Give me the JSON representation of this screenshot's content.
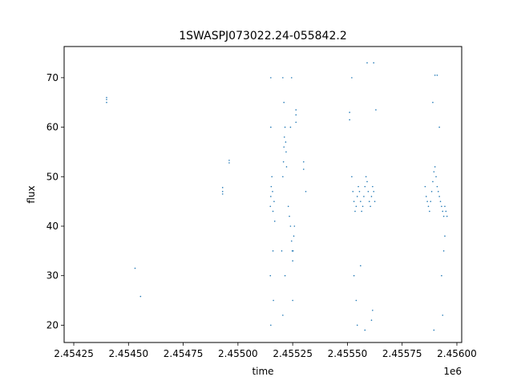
{
  "chart_data": {
    "type": "scatter",
    "title": "1SWASPJ073022.24-055842.2",
    "xlabel": "time",
    "ylabel": "flux",
    "x_offset_label": "1e6",
    "xlim": [
      2454206,
      2456022
    ],
    "ylim": [
      16.5,
      76.3
    ],
    "x_ticks": [
      2454250,
      2454500,
      2454750,
      2455000,
      2455250,
      2455500,
      2455750,
      2456000
    ],
    "x_tick_labels": [
      "2.45425",
      "2.45450",
      "2.45475",
      "2.45500",
      "2.45525",
      "2.45550",
      "2.45575",
      "2.45600"
    ],
    "y_ticks": [
      20,
      30,
      40,
      50,
      60,
      70
    ],
    "y_tick_labels": [
      "20",
      "30",
      "40",
      "50",
      "60",
      "70"
    ],
    "grid": false,
    "marker_color": "#1f77b4",
    "series": [
      {
        "values": [
          [
            2454190,
            53.4
          ],
          [
            2454400,
            65.0
          ],
          [
            2454400,
            65.6
          ],
          [
            2454400,
            66.0
          ],
          [
            2454530,
            31.5
          ],
          [
            2454555,
            25.8
          ],
          [
            2454930,
            47.0
          ],
          [
            2454930,
            47.8
          ],
          [
            2454930,
            46.5
          ],
          [
            2454960,
            52.8
          ],
          [
            2454960,
            53.3
          ],
          [
            2455148,
            44.0
          ],
          [
            2455150,
            46.0
          ],
          [
            2455152,
            48.0
          ],
          [
            2455155,
            50.0
          ],
          [
            2455158,
            47.0
          ],
          [
            2455160,
            43.0
          ],
          [
            2455165,
            45.0
          ],
          [
            2455168,
            41.0
          ],
          [
            2455150,
            70.0
          ],
          [
            2455150,
            60.0
          ],
          [
            2455148,
            30.0
          ],
          [
            2455150,
            20.0
          ],
          [
            2455160,
            35.0
          ],
          [
            2455162,
            25.0
          ],
          [
            2455205,
            50.0
          ],
          [
            2455208,
            53.0
          ],
          [
            2455210,
            56.0
          ],
          [
            2455212,
            58.0
          ],
          [
            2455215,
            60.0
          ],
          [
            2455218,
            57.0
          ],
          [
            2455220,
            55.0
          ],
          [
            2455222,
            52.0
          ],
          [
            2455205,
            70.0
          ],
          [
            2455210,
            65.0
          ],
          [
            2455200,
            35.0
          ],
          [
            2455205,
            22.0
          ],
          [
            2455215,
            30.0
          ],
          [
            2455230,
            44.0
          ],
          [
            2455235,
            42.0
          ],
          [
            2455240,
            40.0
          ],
          [
            2455245,
            37.0
          ],
          [
            2455248,
            35.0
          ],
          [
            2455250,
            33.0
          ],
          [
            2455252,
            35.0
          ],
          [
            2455255,
            38.0
          ],
          [
            2455258,
            40.0
          ],
          [
            2455240,
            60.0
          ],
          [
            2455245,
            70.0
          ],
          [
            2455250,
            25.0
          ],
          [
            2455265,
            61.0
          ],
          [
            2455265,
            62.5
          ],
          [
            2455265,
            63.5
          ],
          [
            2455300,
            51.5
          ],
          [
            2455300,
            53.0
          ],
          [
            2455310,
            47.0
          ],
          [
            2455510,
            61.5
          ],
          [
            2455510,
            63.0
          ],
          [
            2455520,
            50.0
          ],
          [
            2455525,
            47.0
          ],
          [
            2455530,
            45.0
          ],
          [
            2455535,
            43.0
          ],
          [
            2455540,
            44.0
          ],
          [
            2455545,
            46.0
          ],
          [
            2455550,
            48.0
          ],
          [
            2455555,
            47.0
          ],
          [
            2455560,
            45.0
          ],
          [
            2455565,
            43.0
          ],
          [
            2455570,
            44.0
          ],
          [
            2455575,
            46.0
          ],
          [
            2455580,
            48.0
          ],
          [
            2455585,
            50.0
          ],
          [
            2455590,
            49.0
          ],
          [
            2455595,
            47.0
          ],
          [
            2455600,
            45.0
          ],
          [
            2455605,
            44.0
          ],
          [
            2455610,
            46.0
          ],
          [
            2455615,
            48.0
          ],
          [
            2455620,
            47.0
          ],
          [
            2455625,
            45.0
          ],
          [
            2455520,
            70.0
          ],
          [
            2455530,
            30.0
          ],
          [
            2455540,
            25.0
          ],
          [
            2455545,
            20.0
          ],
          [
            2455580,
            19.0
          ],
          [
            2455590,
            73.0
          ],
          [
            2455610,
            21.0
          ],
          [
            2455615,
            23.0
          ],
          [
            2455620,
            73.0
          ],
          [
            2455630,
            63.5
          ],
          [
            2455560,
            32.0
          ],
          [
            2455855,
            48.0
          ],
          [
            2455860,
            46.0
          ],
          [
            2455865,
            45.0
          ],
          [
            2455870,
            44.0
          ],
          [
            2455875,
            43.0
          ],
          [
            2455880,
            45.0
          ],
          [
            2455885,
            47.0
          ],
          [
            2455890,
            49.0
          ],
          [
            2455895,
            51.0
          ],
          [
            2455900,
            52.0
          ],
          [
            2455905,
            50.0
          ],
          [
            2455910,
            48.0
          ],
          [
            2455915,
            47.0
          ],
          [
            2455920,
            46.0
          ],
          [
            2455925,
            45.0
          ],
          [
            2455930,
            44.0
          ],
          [
            2455935,
            43.0
          ],
          [
            2455940,
            42.0
          ],
          [
            2455945,
            44.0
          ],
          [
            2455950,
            43.0
          ],
          [
            2455955,
            42.0
          ],
          [
            2455890,
            65.0
          ],
          [
            2455900,
            70.5
          ],
          [
            2455910,
            70.5
          ],
          [
            2455920,
            60.0
          ],
          [
            2455930,
            30.0
          ],
          [
            2455940,
            35.0
          ],
          [
            2455935,
            22.0
          ],
          [
            2455895,
            19.0
          ],
          [
            2455945,
            38.0
          ]
        ]
      }
    ]
  }
}
